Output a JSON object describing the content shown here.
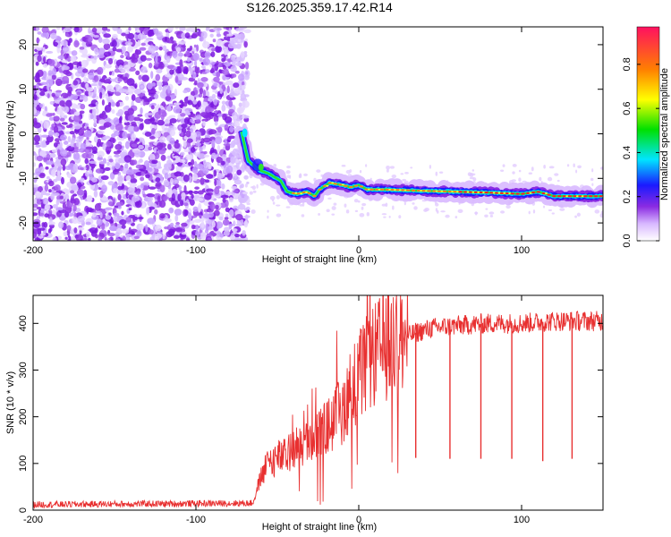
{
  "title": "S126.2025.359.17.42.R14",
  "colors": {
    "signal": "#e83030",
    "axis": "#000000",
    "noise": "#8a2be2"
  },
  "chart_data": [
    {
      "type": "heatmap",
      "name": "spectrogram",
      "xlabel": "Height of straight line (km)",
      "ylabel": "Frequency (Hz)",
      "xlim": [
        -200,
        150
      ],
      "ylim": [
        -24,
        24
      ],
      "xticks": [
        -200,
        -100,
        0,
        100
      ],
      "yticks": [
        20,
        10,
        0,
        -10,
        -20
      ],
      "noise_region_x": [
        -200,
        -72
      ],
      "signal_track": [
        {
          "x": -72,
          "y": 0.5
        },
        {
          "x": -68,
          "y": -6
        },
        {
          "x": -62,
          "y": -8
        },
        {
          "x": -55,
          "y": -9
        },
        {
          "x": -48,
          "y": -10.5
        },
        {
          "x": -44,
          "y": -13
        },
        {
          "x": -38,
          "y": -13.5
        },
        {
          "x": -32,
          "y": -13
        },
        {
          "x": -27,
          "y": -14
        },
        {
          "x": -24,
          "y": -12.5
        },
        {
          "x": -18,
          "y": -11
        },
        {
          "x": -10,
          "y": -11.5
        },
        {
          "x": -5,
          "y": -12
        },
        {
          "x": 0,
          "y": -11.5
        },
        {
          "x": 5,
          "y": -12.5
        },
        {
          "x": 15,
          "y": -12.5
        },
        {
          "x": 40,
          "y": -12.8
        },
        {
          "x": 60,
          "y": -13
        },
        {
          "x": 80,
          "y": -13.2
        },
        {
          "x": 100,
          "y": -13.5
        },
        {
          "x": 110,
          "y": -13
        },
        {
          "x": 120,
          "y": -14
        },
        {
          "x": 150,
          "y": -14
        }
      ],
      "colorbar": {
        "label": "Normalized spectral amplitude",
        "ticks": [
          0.0,
          0.2,
          0.4,
          0.6,
          0.8
        ],
        "tick_labels": [
          "0.0",
          "0.2",
          "0.4",
          "0.6",
          "0.8"
        ],
        "range": [
          0,
          0.97
        ]
      }
    },
    {
      "type": "line",
      "name": "snr",
      "xlabel": "Height of straight line (km)",
      "ylabel": "SNR (10 * v/v)",
      "xlim": [
        -200,
        150
      ],
      "ylim": [
        0,
        460
      ],
      "xticks": [
        -200,
        -100,
        0,
        100
      ],
      "yticks": [
        0,
        100,
        200,
        300,
        400
      ],
      "trend": [
        {
          "x": -200,
          "y": 12
        },
        {
          "x": -65,
          "y": 15
        },
        {
          "x": -60,
          "y": 70
        },
        {
          "x": -55,
          "y": 105
        },
        {
          "x": -50,
          "y": 110
        },
        {
          "x": -45,
          "y": 115
        },
        {
          "x": -40,
          "y": 130
        },
        {
          "x": -30,
          "y": 150
        },
        {
          "x": -20,
          "y": 175
        },
        {
          "x": -10,
          "y": 215
        },
        {
          "x": -5,
          "y": 260
        },
        {
          "x": 5,
          "y": 310
        },
        {
          "x": 15,
          "y": 350
        },
        {
          "x": 25,
          "y": 365
        },
        {
          "x": 35,
          "y": 380
        },
        {
          "x": 45,
          "y": 390
        },
        {
          "x": 60,
          "y": 395
        },
        {
          "x": 80,
          "y": 400
        },
        {
          "x": 100,
          "y": 400
        },
        {
          "x": 120,
          "y": 405
        },
        {
          "x": 150,
          "y": 405
        }
      ],
      "dips": [
        {
          "x": 35,
          "y": 112
        },
        {
          "x": 56,
          "y": 110
        },
        {
          "x": 75,
          "y": 110
        },
        {
          "x": 94,
          "y": 110
        },
        {
          "x": 113,
          "y": 105
        },
        {
          "x": 131,
          "y": 110
        }
      ]
    }
  ]
}
